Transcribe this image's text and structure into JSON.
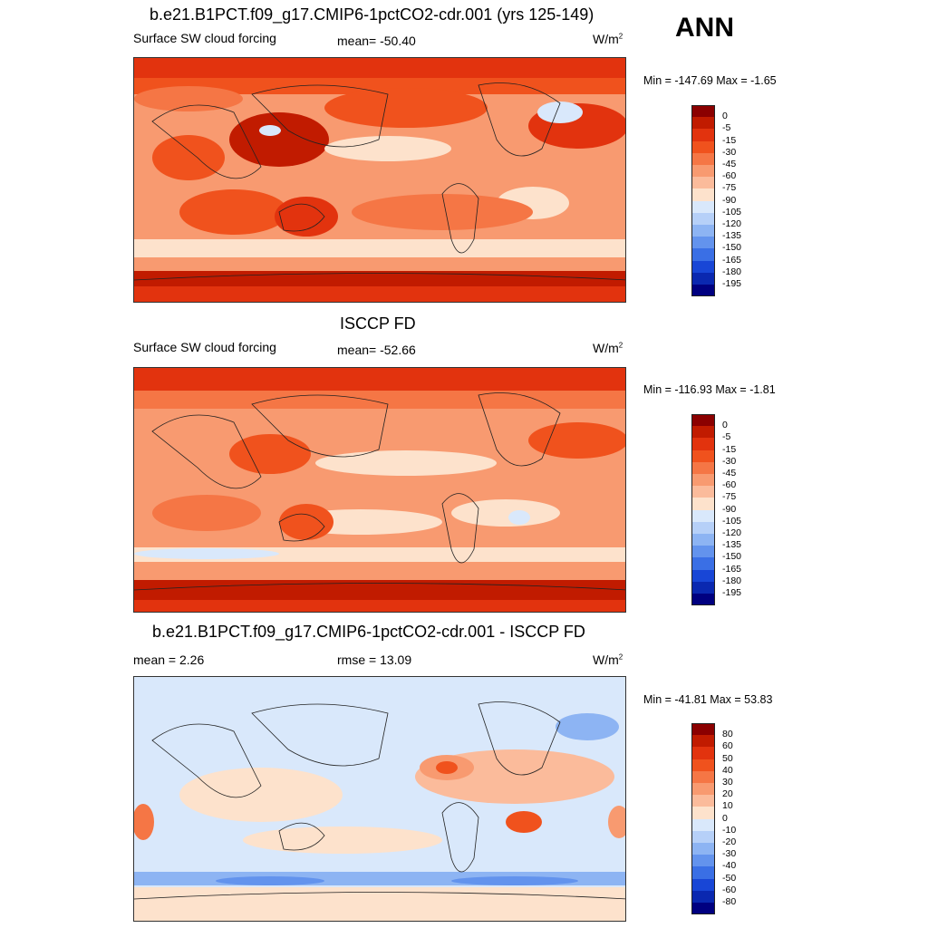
{
  "season": "ANN",
  "panels": [
    {
      "title": "b.e21.B1PCT.f09_g17.CMIP6-1pctCO2-cdr.001 (yrs 125-149)",
      "left_label": "Surface SW cloud forcing",
      "center_label": "mean= -50.40",
      "units_base": "W/m",
      "units_exp": "2",
      "minmax": "Min = -147.69 Max =  -1.65",
      "colorbar_labels": [
        "0",
        "-5",
        "-15",
        "-30",
        "-45",
        "-60",
        "-75",
        "-90",
        "-105",
        "-120",
        "-135",
        "-150",
        "-165",
        "-180",
        "-195"
      ]
    },
    {
      "title": "ISCCP FD",
      "left_label": "Surface SW cloud forcing",
      "center_label": "mean= -52.66",
      "units_base": "W/m",
      "units_exp": "2",
      "minmax": "Min = -116.93 Max =  -1.81",
      "colorbar_labels": [
        "0",
        "-5",
        "-15",
        "-30",
        "-45",
        "-60",
        "-75",
        "-90",
        "-105",
        "-120",
        "-135",
        "-150",
        "-165",
        "-180",
        "-195"
      ]
    },
    {
      "title": "b.e21.B1PCT.f09_g17.CMIP6-1pctCO2-cdr.001 - ISCCP FD",
      "left_label": "mean =   2.26",
      "center_label": "rmse =  13.09",
      "units_base": "W/m",
      "units_exp": "2",
      "minmax": "Min = -41.81 Max =  53.83",
      "colorbar_labels": [
        "80",
        "60",
        "50",
        "40",
        "30",
        "20",
        "10",
        "0",
        "-10",
        "-20",
        "-30",
        "-40",
        "-50",
        "-60",
        "-80"
      ]
    }
  ],
  "colors": {
    "scale": [
      "#8b0000",
      "#c11b00",
      "#e2330e",
      "#f0521d",
      "#f57645",
      "#f89a70",
      "#fbbb9b",
      "#fde2cc",
      "#d9e8fb",
      "#b6d0f8",
      "#8db4f3",
      "#6393ed",
      "#3a6fe5",
      "#1846d6",
      "#0a28b0",
      "#000080"
    ]
  },
  "chart_data": [
    {
      "type": "heatmap",
      "title": "b.e21.B1PCT.f09_g17.CMIP6-1pctCO2-cdr.001 (yrs 125-149)",
      "variable": "Surface SW cloud forcing",
      "units": "W/m2",
      "mean": -50.4,
      "min": -147.69,
      "max": -1.65,
      "contour_levels": [
        0,
        -5,
        -15,
        -30,
        -45,
        -60,
        -75,
        -90,
        -105,
        -120,
        -135,
        -150,
        -165,
        -180,
        -195
      ]
    },
    {
      "type": "heatmap",
      "title": "ISCCP FD",
      "variable": "Surface SW cloud forcing",
      "units": "W/m2",
      "mean": -52.66,
      "min": -116.93,
      "max": -1.81,
      "contour_levels": [
        0,
        -5,
        -15,
        -30,
        -45,
        -60,
        -75,
        -90,
        -105,
        -120,
        -135,
        -150,
        -165,
        -180,
        -195
      ]
    },
    {
      "type": "heatmap",
      "title": "b.e21.B1PCT.f09_g17.CMIP6-1pctCO2-cdr.001 - ISCCP FD",
      "units": "W/m2",
      "mean": 2.26,
      "rmse": 13.09,
      "min": -41.81,
      "max": 53.83,
      "contour_levels": [
        80,
        60,
        50,
        40,
        30,
        20,
        10,
        0,
        -10,
        -20,
        -30,
        -40,
        -50,
        -60,
        -80
      ]
    }
  ]
}
